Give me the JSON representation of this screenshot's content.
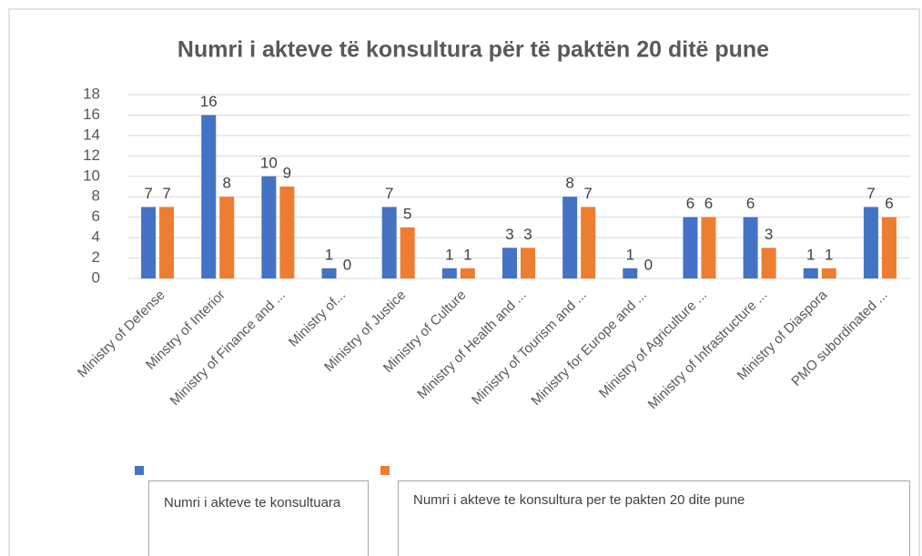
{
  "chart_data": {
    "type": "bar",
    "title": "Numri i akteve të konsultura për të paktën 20 ditë pune",
    "categories": [
      "Ministry of Defense",
      "Minstry of Interior",
      "Ministry of Finance and ...",
      "Ministry of...",
      "Ministry of Justice",
      "Ministry of Culture",
      "Ministry of Health and ...",
      "Ministry of Tourism and ...",
      "Ministry for Europe and ...",
      "Ministry of Agriculture ...",
      "Ministry of Infrastructure ...",
      "Ministry of Diaspora",
      "PMO subordinated ..."
    ],
    "series": [
      {
        "name": "Numri i akteve te konsultuara",
        "color": "#4472c4",
        "values": [
          7,
          16,
          10,
          1,
          7,
          1,
          3,
          8,
          1,
          6,
          6,
          1,
          7
        ]
      },
      {
        "name": "Numri i akteve te konsultura per te pakten 20 dite pune",
        "color": "#ed7d31",
        "values": [
          7,
          8,
          9,
          0,
          5,
          1,
          3,
          7,
          0,
          6,
          3,
          1,
          6
        ]
      }
    ],
    "ylim": [
      0,
      18
    ],
    "yticks": [
      0,
      2,
      4,
      6,
      8,
      10,
      12,
      14,
      16,
      18
    ],
    "grid": true
  }
}
